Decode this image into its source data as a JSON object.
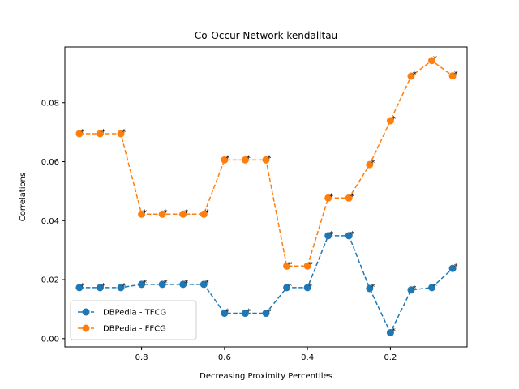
{
  "chart_data": {
    "type": "line",
    "title": "Co-Occur Network kendalltau",
    "xlabel": "Decreasing Proximity Percentiles",
    "ylabel": "Correlations",
    "x_inverted": true,
    "xlim": [
      0.985,
      0.015
    ],
    "ylim": [
      -0.0028,
      0.0989
    ],
    "x": [
      0.95,
      0.9,
      0.85,
      0.8,
      0.75,
      0.7,
      0.65,
      0.6,
      0.55,
      0.5,
      0.45,
      0.4,
      0.35,
      0.3,
      0.25,
      0.2,
      0.15,
      0.1,
      0.05
    ],
    "x_ticks": [
      0.8,
      0.6,
      0.4,
      0.2
    ],
    "x_tick_labels": [
      "0.8",
      "0.6",
      "0.4",
      "0.2"
    ],
    "y_ticks": [
      0.0,
      0.02,
      0.04,
      0.06,
      0.08
    ],
    "y_tick_labels": [
      "0.00",
      "0.02",
      "0.04",
      "0.06",
      "0.08"
    ],
    "grid": false,
    "legend_position": "lower-left",
    "annotation_marker": "*",
    "series": [
      {
        "name": "DBPedia - TFCG",
        "color": "#1f77b4",
        "linestyle": "dashed",
        "marker": "circle",
        "values": [
          0.0173,
          0.0173,
          0.0173,
          0.0184,
          0.0184,
          0.0184,
          0.0184,
          0.0086,
          0.0086,
          0.0086,
          0.0173,
          0.0173,
          0.0349,
          0.0349,
          0.017,
          0.002,
          0.0165,
          0.0173,
          0.0238
        ],
        "annotations": [
          "*",
          "*",
          "*",
          "*",
          "*",
          "*",
          "*",
          "*",
          "*",
          "*",
          "*",
          "*",
          "*",
          "*",
          "*",
          "*",
          "*",
          "*",
          "*"
        ]
      },
      {
        "name": "DBPedia - FFCG",
        "color": "#ff7f0e",
        "linestyle": "dashed",
        "marker": "circle",
        "values": [
          0.0695,
          0.0695,
          0.0695,
          0.0422,
          0.0422,
          0.0422,
          0.0422,
          0.0606,
          0.0606,
          0.0606,
          0.0246,
          0.0246,
          0.0477,
          0.0477,
          0.059,
          0.0739,
          0.089,
          0.0943,
          0.0891
        ],
        "annotations": [
          "*",
          "*",
          "*",
          "*",
          "*",
          "*",
          "*",
          "*",
          "*",
          "*",
          "*",
          "*",
          "*",
          "*",
          "*",
          "*",
          "*",
          "*",
          "*"
        ]
      }
    ]
  }
}
